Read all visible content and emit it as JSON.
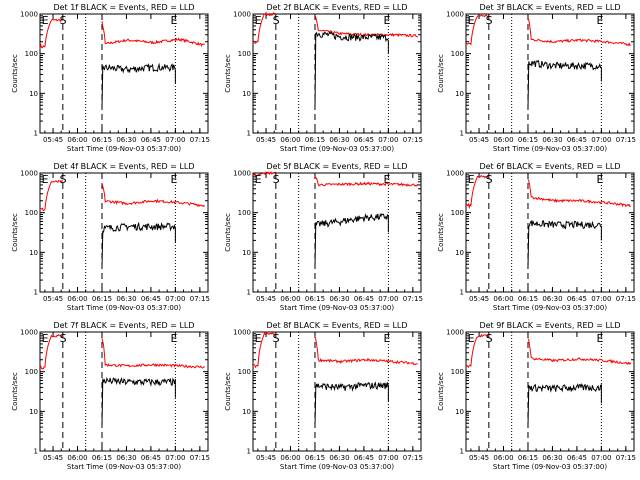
{
  "chart_data": [
    {
      "type": "line",
      "title": "Det 1f BLACK = Events, RED = LLD",
      "ylabel": "Counts/sec",
      "xlabel": "Start Time (09-Nov-03 05:37:00)",
      "yscale": "log",
      "ylim": [
        1,
        1000
      ],
      "yticks": [
        "1",
        "10",
        "100",
        "1000"
      ],
      "xticks": [
        "05:45",
        "06:00",
        "06:15",
        "06:30",
        "06:45",
        "07:00",
        "07:15"
      ],
      "markers": [
        "E",
        "S",
        "E"
      ],
      "series": [
        {
          "color": "#ff0000",
          "base_level": 220,
          "values": [
            150,
            700,
            170,
            220,
            190,
            230,
            160
          ]
        },
        {
          "color": "#000000",
          "base_level": 45,
          "values": [
            45,
            40,
            45,
            45
          ]
        }
      ]
    },
    {
      "type": "line",
      "title": "Det 2f BLACK = Events, RED = LLD",
      "ylabel": "Counts/sec",
      "xlabel": "Start Time (09-Nov-03 05:37:00)",
      "yscale": "log",
      "ylim": [
        1,
        1000
      ],
      "yticks": [
        "1",
        "10",
        "100",
        "1000"
      ],
      "xticks": [
        "05:45",
        "06:00",
        "06:15",
        "06:30",
        "06:45",
        "07:00",
        "07:15"
      ],
      "markers": [
        "E",
        "S",
        "E"
      ],
      "series": [
        {
          "color": "#ff0000",
          "base_level": 320,
          "values": [
            200,
            1000,
            400,
            320,
            300,
            300,
            280
          ]
        },
        {
          "color": "#000000",
          "base_level": 270,
          "values": [
            330,
            270,
            260,
            260
          ]
        }
      ]
    },
    {
      "type": "line",
      "title": "Det 3f BLACK = Events, RED = LLD",
      "ylabel": "Counts/sec",
      "xlabel": "Start Time (09-Nov-03 05:37:00)",
      "yscale": "log",
      "ylim": [
        1,
        1000
      ],
      "yticks": [
        "1",
        "10",
        "100",
        "1000"
      ],
      "xticks": [
        "05:45",
        "06:00",
        "06:15",
        "06:30",
        "06:45",
        "07:00",
        "07:15"
      ],
      "markers": [
        "E",
        "S",
        "E"
      ],
      "series": [
        {
          "color": "#ff0000",
          "base_level": 230,
          "values": [
            170,
            900,
            230,
            200,
            220,
            200,
            170
          ]
        },
        {
          "color": "#000000",
          "base_level": 50,
          "values": [
            60,
            50,
            50,
            50
          ]
        }
      ]
    },
    {
      "type": "line",
      "title": "Det 4f BLACK = Events, RED = LLD",
      "ylabel": "Counts/sec",
      "xlabel": "Start Time (09-Nov-03 05:37:00)",
      "yscale": "log",
      "ylim": [
        1,
        1000
      ],
      "yticks": [
        "1",
        "10",
        "100",
        "1000"
      ],
      "xticks": [
        "05:45",
        "06:00",
        "06:15",
        "06:30",
        "06:45",
        "07:00",
        "07:15"
      ],
      "markers": [
        "E",
        "S",
        "E"
      ],
      "series": [
        {
          "color": "#ff0000",
          "base_level": 200,
          "values": [
            120,
            600,
            200,
            170,
            200,
            180,
            150
          ]
        },
        {
          "color": "#000000",
          "base_level": 45,
          "values": [
            40,
            45,
            45,
            45
          ]
        }
      ]
    },
    {
      "type": "line",
      "title": "Det 5f BLACK = Events, RED = LLD",
      "ylabel": "Counts/sec",
      "xlabel": "Start Time (09-Nov-03 05:37:00)",
      "yscale": "log",
      "ylim": [
        1,
        1000
      ],
      "yticks": [
        "1",
        "10",
        "100",
        "1000"
      ],
      "xticks": [
        "05:45",
        "06:00",
        "06:15",
        "06:30",
        "06:45",
        "07:00",
        "07:15"
      ],
      "markers": [
        "E",
        "S",
        "E"
      ],
      "series": [
        {
          "color": "#ff0000",
          "base_level": 550,
          "values": [
            900,
            1000,
            500,
            520,
            540,
            520,
            500
          ]
        },
        {
          "color": "#000000",
          "base_level": 70,
          "values": [
            50,
            60,
            75,
            80
          ]
        }
      ]
    },
    {
      "type": "line",
      "title": "Det 6f BLACK = Events, RED = LLD",
      "ylabel": "Counts/sec",
      "xlabel": "Start Time (09-Nov-03 05:37:00)",
      "yscale": "log",
      "ylim": [
        1,
        1000
      ],
      "yticks": [
        "1",
        "10",
        "100",
        "1000"
      ],
      "xticks": [
        "05:45",
        "06:00",
        "06:15",
        "06:30",
        "06:45",
        "07:00",
        "07:15"
      ],
      "markers": [
        "E",
        "S",
        "E"
      ],
      "series": [
        {
          "color": "#ff0000",
          "base_level": 200,
          "values": [
            150,
            800,
            250,
            200,
            200,
            180,
            150
          ]
        },
        {
          "color": "#000000",
          "base_level": 50,
          "values": [
            55,
            50,
            50,
            50
          ]
        }
      ]
    },
    {
      "type": "line",
      "title": "Det 7f BLACK = Events, RED = LLD",
      "ylabel": "Counts/sec",
      "xlabel": "Start Time (09-Nov-03 05:37:00)",
      "yscale": "log",
      "ylim": [
        1,
        1000
      ],
      "yticks": [
        "1",
        "10",
        "100",
        "1000"
      ],
      "xticks": [
        "05:45",
        "06:00",
        "06:15",
        "06:30",
        "06:45",
        "07:00",
        "07:15"
      ],
      "markers": [
        "E",
        "S",
        "E"
      ],
      "series": [
        {
          "color": "#ff0000",
          "base_level": 150,
          "values": [
            130,
            800,
            150,
            140,
            150,
            140,
            130
          ]
        },
        {
          "color": "#000000",
          "base_level": 55,
          "values": [
            60,
            55,
            55,
            55
          ]
        }
      ]
    },
    {
      "type": "line",
      "title": "Det 8f BLACK = Events, RED = LLD",
      "ylabel": "Counts/sec",
      "xlabel": "Start Time (09-Nov-03 05:37:00)",
      "yscale": "log",
      "ylim": [
        1,
        1000
      ],
      "yticks": [
        "1",
        "10",
        "100",
        "1000"
      ],
      "xticks": [
        "05:45",
        "06:00",
        "06:15",
        "06:30",
        "06:45",
        "07:00",
        "07:15"
      ],
      "markers": [
        "E",
        "S",
        "E"
      ],
      "series": [
        {
          "color": "#ff0000",
          "base_level": 200,
          "values": [
            140,
            900,
            200,
            180,
            200,
            180,
            160
          ]
        },
        {
          "color": "#000000",
          "base_level": 45,
          "values": [
            45,
            40,
            45,
            45
          ]
        }
      ]
    },
    {
      "type": "line",
      "title": "Det 9f BLACK = Events, RED = LLD",
      "ylabel": "Counts/sec",
      "xlabel": "Start Time (09-Nov-03 05:37:00)",
      "yscale": "log",
      "ylim": [
        1,
        1000
      ],
      "yticks": [
        "1",
        "10",
        "100",
        "1000"
      ],
      "xticks": [
        "05:45",
        "06:00",
        "06:15",
        "06:30",
        "06:45",
        "07:00",
        "07:15"
      ],
      "markers": [
        "E",
        "S",
        "E"
      ],
      "series": [
        {
          "color": "#ff0000",
          "base_level": 200,
          "values": [
            140,
            800,
            220,
            190,
            210,
            190,
            160
          ]
        },
        {
          "color": "#000000",
          "base_level": 40,
          "values": [
            40,
            38,
            40,
            40
          ]
        }
      ]
    }
  ]
}
